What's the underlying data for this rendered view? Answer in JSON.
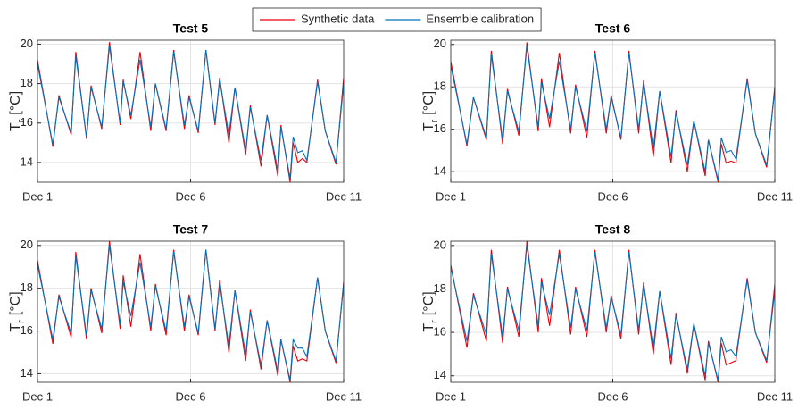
{
  "chart_data": [
    {
      "type": "line",
      "title": "Test 5",
      "ylabel": [
        "T",
        "r",
        "[°C]"
      ],
      "grid": true,
      "legend": "top",
      "x": [
        1.0,
        1.5,
        1.7,
        2.1,
        2.25,
        2.6,
        2.75,
        3.1,
        3.35,
        3.7,
        3.8,
        4.05,
        4.35,
        4.7,
        4.85,
        5.2,
        5.45,
        5.8,
        5.95,
        6.25,
        6.5,
        6.8,
        6.95,
        7.25,
        7.45,
        7.8,
        7.95,
        8.3,
        8.5,
        8.85,
        8.95,
        9.25,
        9.35,
        9.5,
        9.65,
        9.8,
        10.15,
        10.4,
        10.75,
        11.0
      ],
      "xlim": [
        1,
        11
      ],
      "xticks": [
        {
          "value": 1,
          "label": "Dec 1"
        },
        {
          "value": 6,
          "label": "Dec 6"
        },
        {
          "value": 11,
          "label": "Dec 11"
        }
      ],
      "ylim": [
        13,
        20.2
      ],
      "yticks": [
        14,
        16,
        18,
        20
      ],
      "series": [
        {
          "name": "Synthetic data",
          "color": "#e8000b",
          "values": [
            19.2,
            14.8,
            17.4,
            15.4,
            19.6,
            15.2,
            17.9,
            15.7,
            20.1,
            15.9,
            18.2,
            16.2,
            19.6,
            15.6,
            18.0,
            15.6,
            19.7,
            15.7,
            17.4,
            15.5,
            19.7,
            15.9,
            18.3,
            15.0,
            17.8,
            14.4,
            16.9,
            13.8,
            16.4,
            13.3,
            15.9,
            13.0,
            15.0,
            14.0,
            14.2,
            14.0,
            18.2,
            15.6,
            13.9,
            18.3
          ]
        },
        {
          "name": "Ensemble calibration",
          "color": "#0072bd",
          "values": [
            19.0,
            14.9,
            17.3,
            15.5,
            19.4,
            15.3,
            17.8,
            15.8,
            19.9,
            16.0,
            18.1,
            16.4,
            19.2,
            15.8,
            18.0,
            15.7,
            19.6,
            15.9,
            17.3,
            15.6,
            19.7,
            16.0,
            18.2,
            15.4,
            17.8,
            14.6,
            16.8,
            14.1,
            16.4,
            13.6,
            15.8,
            13.2,
            15.3,
            14.5,
            14.6,
            14.1,
            18.1,
            15.6,
            14.0,
            18.0
          ]
        }
      ]
    },
    {
      "type": "line",
      "title": "Test 6",
      "ylabel": [
        "T",
        "r",
        "[°C]"
      ],
      "grid": true,
      "x": [
        1.0,
        1.5,
        1.7,
        2.1,
        2.25,
        2.6,
        2.75,
        3.1,
        3.35,
        3.7,
        3.8,
        4.05,
        4.35,
        4.7,
        4.85,
        5.2,
        5.45,
        5.8,
        5.95,
        6.25,
        6.5,
        6.8,
        6.95,
        7.25,
        7.45,
        7.8,
        7.95,
        8.3,
        8.5,
        8.85,
        8.95,
        9.25,
        9.35,
        9.5,
        9.65,
        9.8,
        10.15,
        10.4,
        10.75,
        11.0
      ],
      "xlim": [
        1,
        11
      ],
      "xticks": [
        {
          "value": 1,
          "label": "Dec 1"
        },
        {
          "value": 6,
          "label": "Dec 6"
        },
        {
          "value": 11,
          "label": "Dec 11"
        }
      ],
      "ylim": [
        13.5,
        20.2
      ],
      "yticks": [
        14,
        16,
        18,
        20
      ],
      "series": [
        {
          "color": "#e8000b",
          "values": [
            19.2,
            15.2,
            17.5,
            15.5,
            19.7,
            15.3,
            17.9,
            15.7,
            20.1,
            15.9,
            18.4,
            16.1,
            19.6,
            15.8,
            18.1,
            15.6,
            19.7,
            15.8,
            17.6,
            15.5,
            19.7,
            15.8,
            18.3,
            14.7,
            17.8,
            14.4,
            16.9,
            14.0,
            16.4,
            13.8,
            15.5,
            13.5,
            15.3,
            14.4,
            14.5,
            14.4,
            18.4,
            15.8,
            14.2,
            18.0
          ]
        },
        {
          "color": "#0072bd",
          "values": [
            19.0,
            15.3,
            17.5,
            15.6,
            19.5,
            15.5,
            17.8,
            15.9,
            19.9,
            16.1,
            18.2,
            16.5,
            19.2,
            16.0,
            18.0,
            15.9,
            19.6,
            16.0,
            17.5,
            15.6,
            19.6,
            16.0,
            18.2,
            15.1,
            17.8,
            14.7,
            16.8,
            14.3,
            16.4,
            14.0,
            15.5,
            13.6,
            15.6,
            14.9,
            15.0,
            14.6,
            18.3,
            15.8,
            14.3,
            17.9
          ]
        }
      ]
    },
    {
      "type": "line",
      "title": "Test 7",
      "ylabel": [
        "T",
        "r",
        "[°C]"
      ],
      "grid": true,
      "x": [
        1.0,
        1.5,
        1.7,
        2.1,
        2.25,
        2.6,
        2.75,
        3.1,
        3.35,
        3.7,
        3.8,
        4.05,
        4.35,
        4.7,
        4.85,
        5.2,
        5.45,
        5.8,
        5.95,
        6.25,
        6.5,
        6.8,
        6.95,
        7.25,
        7.45,
        7.8,
        7.95,
        8.3,
        8.5,
        8.85,
        8.95,
        9.25,
        9.35,
        9.5,
        9.65,
        9.8,
        10.15,
        10.4,
        10.75,
        11.0
      ],
      "xlim": [
        1,
        11
      ],
      "xticks": [
        {
          "value": 1,
          "label": "Dec 1"
        },
        {
          "value": 6,
          "label": "Dec 6"
        },
        {
          "value": 11,
          "label": "Dec 11"
        }
      ],
      "ylim": [
        13.6,
        20.2
      ],
      "yticks": [
        14,
        16,
        18,
        20
      ],
      "series": [
        {
          "color": "#e8000b",
          "values": [
            19.3,
            15.4,
            17.7,
            15.7,
            19.7,
            15.6,
            18.0,
            15.9,
            20.2,
            16.1,
            18.6,
            16.2,
            19.6,
            16.0,
            18.2,
            15.8,
            19.8,
            16.0,
            17.7,
            15.8,
            19.8,
            16.0,
            18.4,
            15.0,
            17.9,
            14.6,
            17.0,
            14.2,
            16.5,
            13.9,
            15.6,
            13.6,
            15.3,
            14.6,
            14.7,
            14.6,
            18.5,
            16.0,
            14.5,
            18.3
          ]
        },
        {
          "color": "#0072bd",
          "values": [
            19.1,
            15.6,
            17.6,
            15.9,
            19.5,
            15.8,
            17.9,
            16.1,
            20.0,
            16.3,
            18.3,
            16.7,
            19.2,
            16.2,
            18.1,
            16.0,
            19.7,
            16.2,
            17.6,
            15.9,
            19.8,
            16.1,
            18.2,
            15.3,
            17.9,
            14.9,
            16.9,
            14.4,
            16.5,
            14.1,
            15.6,
            13.7,
            15.6,
            15.2,
            15.2,
            14.8,
            18.5,
            16.0,
            14.6,
            18.2
          ]
        }
      ]
    },
    {
      "type": "line",
      "title": "Test 8",
      "ylabel": [
        "T",
        "r",
        "[°C]"
      ],
      "grid": true,
      "x": [
        1.0,
        1.5,
        1.7,
        2.1,
        2.25,
        2.6,
        2.75,
        3.1,
        3.35,
        3.7,
        3.8,
        4.05,
        4.35,
        4.7,
        4.85,
        5.2,
        5.45,
        5.8,
        5.95,
        6.25,
        6.5,
        6.8,
        6.95,
        7.25,
        7.45,
        7.8,
        7.95,
        8.3,
        8.5,
        8.85,
        8.95,
        9.25,
        9.35,
        9.5,
        9.65,
        9.8,
        10.15,
        10.4,
        10.75,
        11.0
      ],
      "xlim": [
        1,
        11
      ],
      "xticks": [
        {
          "value": 1,
          "label": "Dec 1"
        },
        {
          "value": 6,
          "label": "Dec 6"
        },
        {
          "value": 11,
          "label": "Dec 11"
        }
      ],
      "ylim": [
        13.7,
        20.2
      ],
      "yticks": [
        14,
        16,
        18,
        20
      ],
      "series": [
        {
          "color": "#e8000b",
          "values": [
            19.1,
            15.3,
            17.8,
            15.6,
            19.8,
            15.5,
            18.1,
            15.8,
            20.2,
            16.0,
            18.5,
            16.3,
            19.8,
            15.9,
            18.1,
            15.8,
            19.8,
            16.0,
            17.7,
            15.7,
            19.8,
            15.9,
            18.3,
            15.0,
            17.9,
            14.5,
            16.9,
            14.1,
            16.4,
            13.8,
            15.6,
            13.7,
            15.5,
            14.5,
            14.6,
            14.7,
            18.5,
            16.0,
            14.6,
            18.2
          ]
        },
        {
          "color": "#0072bd",
          "values": [
            19.0,
            15.6,
            17.7,
            15.9,
            19.6,
            15.8,
            18.0,
            16.1,
            20.0,
            16.3,
            18.3,
            16.8,
            19.6,
            16.2,
            18.0,
            16.1,
            19.7,
            16.2,
            17.6,
            15.9,
            19.7,
            16.1,
            18.2,
            15.3,
            17.9,
            14.8,
            16.8,
            14.3,
            16.4,
            14.0,
            15.5,
            13.8,
            15.8,
            15.1,
            15.2,
            14.9,
            18.4,
            16.0,
            14.7,
            17.9
          ]
        }
      ]
    }
  ]
}
